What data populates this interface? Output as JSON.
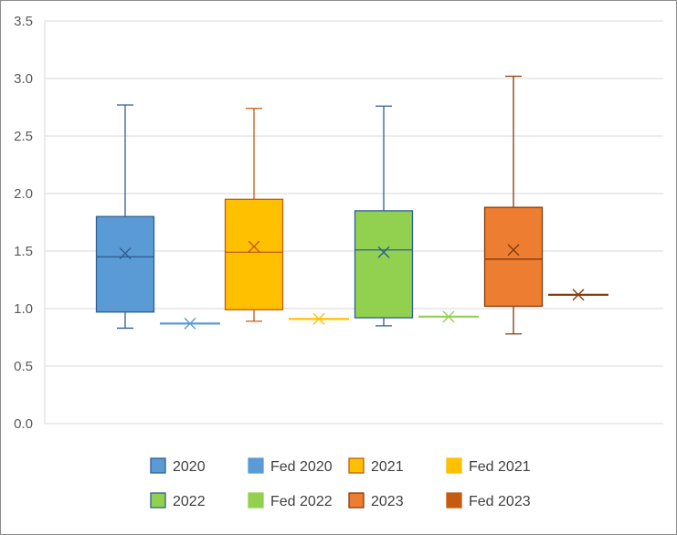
{
  "chart_data": {
    "type": "box",
    "title": "",
    "xlabel": "",
    "ylabel": "",
    "ylim": [
      0,
      3.5
    ],
    "yticks": [
      0.0,
      0.5,
      1.0,
      1.5,
      2.0,
      2.5,
      3.0,
      3.5
    ],
    "ytick_labels": [
      "0.0",
      "0.5",
      "1.0",
      "1.5",
      "2.0",
      "2.5",
      "3.0",
      "3.5"
    ],
    "grid": "horizontal",
    "legend_position": "bottom",
    "series": [
      {
        "name": "2020",
        "kind": "box",
        "fill": "#5b9bd5",
        "stroke": "#2e5f92",
        "min": 0.83,
        "q1": 0.97,
        "median": 1.45,
        "q3": 1.8,
        "max": 2.77,
        "mean": 1.48
      },
      {
        "name": "Fed 2020",
        "kind": "point",
        "fill": "#5b9bd5",
        "stroke": "#5b9bd5",
        "value": 0.87
      },
      {
        "name": "2021",
        "kind": "box",
        "fill": "#ffc000",
        "stroke": "#c55a11",
        "min": 0.89,
        "q1": 0.99,
        "median": 1.49,
        "q3": 1.95,
        "max": 2.74,
        "mean": 1.54
      },
      {
        "name": "Fed 2021",
        "kind": "point",
        "fill": "#ffc000",
        "stroke": "#ffc000",
        "value": 0.91
      },
      {
        "name": "2022",
        "kind": "box",
        "fill": "#92d050",
        "stroke": "#2e5f92",
        "min": 0.85,
        "q1": 0.92,
        "median": 1.51,
        "q3": 1.85,
        "max": 2.76,
        "mean": 1.49
      },
      {
        "name": "Fed 2022",
        "kind": "point",
        "fill": "#92d050",
        "stroke": "#92d050",
        "value": 0.93
      },
      {
        "name": "2023",
        "kind": "box",
        "fill": "#ed7d31",
        "stroke": "#843c0c",
        "min": 0.78,
        "q1": 1.02,
        "median": 1.43,
        "q3": 1.88,
        "max": 3.02,
        "mean": 1.51
      },
      {
        "name": "Fed 2023",
        "kind": "point",
        "fill": "#c55a11",
        "stroke": "#843c0c",
        "value": 1.12
      }
    ]
  }
}
